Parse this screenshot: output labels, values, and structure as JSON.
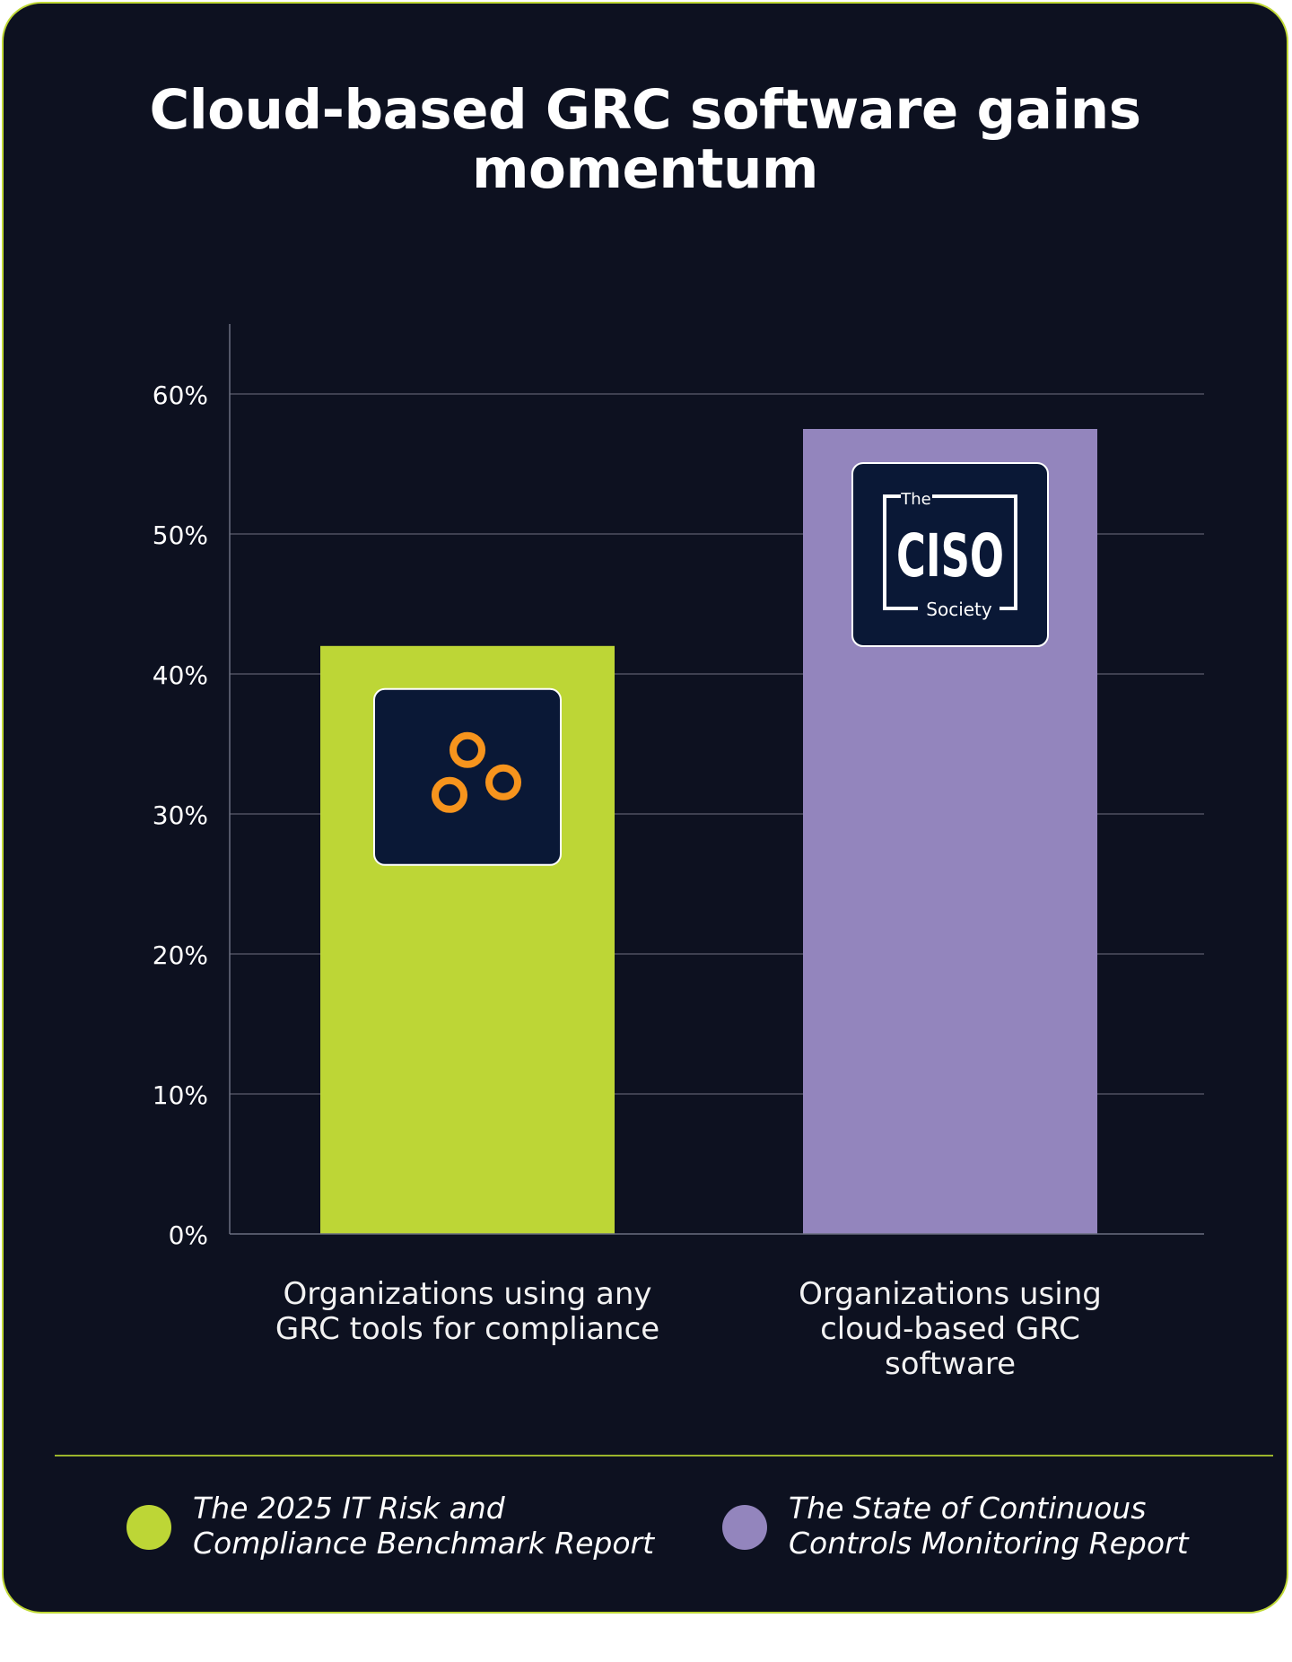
{
  "card": {
    "title": "Cloud-based GRC software gains momentum"
  },
  "chart_data": {
    "type": "bar",
    "title": "Cloud-based GRC software gains momentum",
    "categories": [
      "Organizations using any GRC tools for compliance",
      "Organizations using cloud-based GRC software"
    ],
    "values": [
      42,
      57.5
    ],
    "bar_colors": [
      "#bdd636",
      "#9385bd"
    ],
    "ylim": [
      0,
      65
    ],
    "yticks": [
      0,
      10,
      20,
      30,
      40,
      50,
      60
    ],
    "ytick_labels": [
      "0%",
      "10%",
      "20%",
      "30%",
      "40%",
      "50%",
      "60%"
    ],
    "grid": true,
    "legend_position": "bottom",
    "bar_logos": [
      "three-rings-logo",
      "ciso-society-logo"
    ],
    "logo_text": {
      "top": "The",
      "main": "CISO",
      "bottom": "Society"
    }
  },
  "legend": [
    {
      "label": "The 2025 IT Risk and Compliance Benchmark Report",
      "color": "#bdd636"
    },
    {
      "label": "The State of Continuous Controls Monitoring Report",
      "color": "#9385bd"
    }
  ],
  "colors": {
    "background": "#0d1120",
    "border": "#bfd835",
    "logo_tile": "#0a1836",
    "ring": "#f7941d"
  }
}
